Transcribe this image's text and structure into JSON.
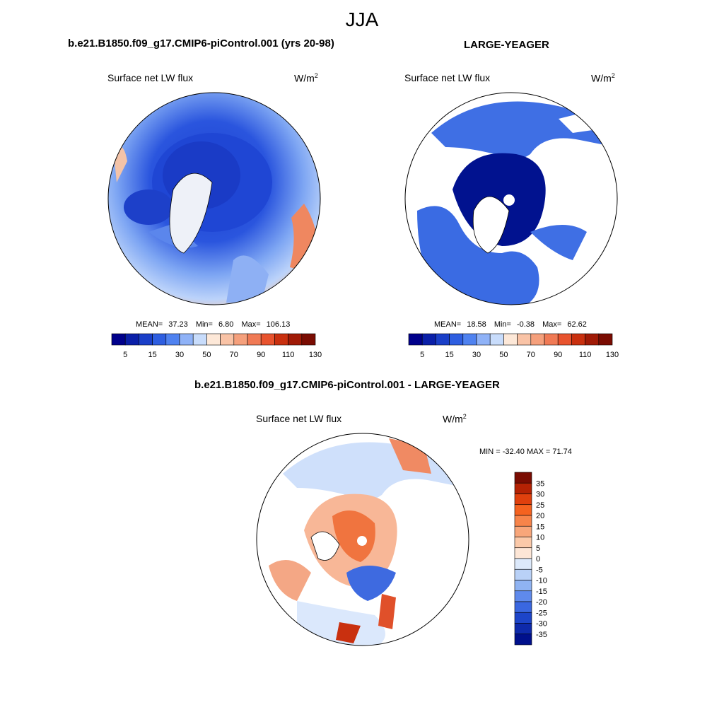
{
  "title": "JJA",
  "panels": [
    {
      "case_title": "b.e21.B1850.f09_g17.CMIP6-piControl.001 (yrs 20-98)",
      "variable": "Surface net LW flux",
      "units": "W/m",
      "units_sup": "2",
      "stats": {
        "mean_label": "MEAN=",
        "mean": "37.23",
        "min_label": "Min=",
        "min": "6.80",
        "max_label": "Max=",
        "max": "106.13"
      }
    },
    {
      "case_title": "LARGE-YEAGER",
      "variable": "Surface net LW flux",
      "units": "W/m",
      "units_sup": "2",
      "stats": {
        "mean_label": "MEAN=",
        "mean": "18.58",
        "min_label": "Min=",
        "min": "-0.38",
        "max_label": "Max=",
        "max": "62.62"
      }
    },
    {
      "case_title": "b.e21.B1850.f09_g17.CMIP6-piControl.001 - LARGE-YEAGER",
      "variable": "Surface net LW flux",
      "units": "W/m",
      "units_sup": "2",
      "stats": {
        "text": "MIN = -32.40 MAX =  71.74"
      }
    }
  ],
  "horizontal_colorbar": {
    "colors": [
      "#00008b",
      "#0a1fa8",
      "#1a3fc8",
      "#2e5ee0",
      "#4f82f0",
      "#8fb2f7",
      "#c8dcfb",
      "#fde8d8",
      "#f9c3a6",
      "#f5a07c",
      "#f07a55",
      "#e8532e",
      "#c9300f",
      "#a01a06",
      "#7a0c02"
    ],
    "labels": [
      "5",
      "15",
      "30",
      "50",
      "70",
      "90",
      "110",
      "130"
    ]
  },
  "vertical_colorbar": {
    "colors": [
      "#7a0c02",
      "#b52204",
      "#e0400d",
      "#f5621f",
      "#f7844a",
      "#f8a67a",
      "#fbc9a9",
      "#fde6d6",
      "#dce9fb",
      "#b9d1f7",
      "#8fb3f2",
      "#5f8aec",
      "#3a67e0",
      "#1d45c9",
      "#0e2aab",
      "#00108c"
    ],
    "labels": [
      "35",
      "30",
      "25",
      "20",
      "15",
      "10",
      "5",
      "0",
      "-5",
      "-10",
      "-15",
      "-20",
      "-25",
      "-30",
      "-35"
    ]
  }
}
